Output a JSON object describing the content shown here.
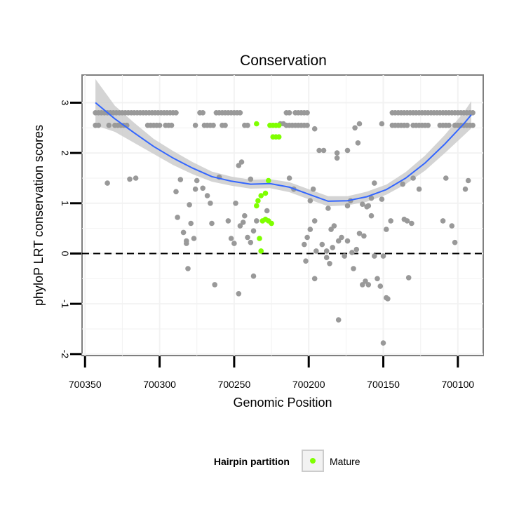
{
  "chart_data": {
    "type": "scatter",
    "title": "Conservation",
    "xlabel": "Genomic Position",
    "ylabel": "phyloP LRT conservation scores",
    "x_reversed": true,
    "xlim": [
      700352,
      700083
    ],
    "ylim": [
      -2.03,
      3.55
    ],
    "x_ticks": [
      700350,
      700300,
      700250,
      700200,
      700150,
      700100
    ],
    "y_ticks": [
      -2,
      -1,
      0,
      1,
      2,
      3
    ],
    "grid": true,
    "reference_line": {
      "y": 0,
      "style": "dashed"
    },
    "legend": {
      "title": "Hairpin partition",
      "placement": "bottom",
      "entries": [
        {
          "label": "Mature",
          "color": "#7fff00"
        }
      ]
    },
    "colors": {
      "other": "#999999",
      "mature": "#7fff00",
      "smooth": "#3366ff",
      "band": "#cccccc"
    },
    "series": [
      {
        "name": "",
        "points": [
          [
            700343,
            2.8
          ],
          [
            700341,
            2.8
          ],
          [
            700339,
            2.8
          ],
          [
            700337,
            2.8
          ],
          [
            700335,
            2.8
          ],
          [
            700333,
            2.8
          ],
          [
            700331,
            2.8
          ],
          [
            700329,
            2.8
          ],
          [
            700327,
            2.8
          ],
          [
            700325,
            2.8
          ],
          [
            700323,
            2.8
          ],
          [
            700321,
            2.8
          ],
          [
            700319,
            2.8
          ],
          [
            700317,
            2.8
          ],
          [
            700315,
            2.8
          ],
          [
            700313,
            2.8
          ],
          [
            700311,
            2.8
          ],
          [
            700309,
            2.8
          ],
          [
            700307,
            2.8
          ],
          [
            700305,
            2.8
          ],
          [
            700303,
            2.8
          ],
          [
            700301,
            2.8
          ],
          [
            700299,
            2.8
          ],
          [
            700297,
            2.8
          ],
          [
            700295,
            2.8
          ],
          [
            700293,
            2.8
          ],
          [
            700291,
            2.8
          ],
          [
            700289,
            2.8
          ],
          [
            700343,
            2.55
          ],
          [
            700341,
            2.55
          ],
          [
            700334,
            2.55
          ],
          [
            700330,
            2.55
          ],
          [
            700328,
            2.55
          ],
          [
            700326,
            2.55
          ],
          [
            700324,
            2.55
          ],
          [
            700322,
            2.55
          ],
          [
            700308,
            2.55
          ],
          [
            700306,
            2.55
          ],
          [
            700304,
            2.55
          ],
          [
            700302,
            2.55
          ],
          [
            700300,
            2.55
          ],
          [
            700296,
            2.55
          ],
          [
            700294,
            2.55
          ],
          [
            700292,
            2.55
          ],
          [
            700273,
            2.8
          ],
          [
            700271,
            2.8
          ],
          [
            700262,
            2.8
          ],
          [
            700260,
            2.8
          ],
          [
            700258,
            2.8
          ],
          [
            700256,
            2.8
          ],
          [
            700254,
            2.8
          ],
          [
            700252,
            2.8
          ],
          [
            700250,
            2.8
          ],
          [
            700248,
            2.8
          ],
          [
            700246,
            2.8
          ],
          [
            700276,
            2.55
          ],
          [
            700270,
            2.55
          ],
          [
            700268,
            2.55
          ],
          [
            700266,
            2.55
          ],
          [
            700264,
            2.55
          ],
          [
            700258,
            2.55
          ],
          [
            700256,
            2.55
          ],
          [
            700243,
            2.55
          ],
          [
            700241,
            2.55
          ],
          [
            700215,
            2.8
          ],
          [
            700213,
            2.8
          ],
          [
            700209,
            2.8
          ],
          [
            700207,
            2.8
          ],
          [
            700205,
            2.8
          ],
          [
            700203,
            2.8
          ],
          [
            700201,
            2.8
          ],
          [
            700219,
            2.58
          ],
          [
            700217,
            2.58
          ],
          [
            700215,
            2.55
          ],
          [
            700213,
            2.55
          ],
          [
            700211,
            2.55
          ],
          [
            700209,
            2.55
          ],
          [
            700207,
            2.55
          ],
          [
            700205,
            2.55
          ],
          [
            700203,
            2.55
          ],
          [
            700201,
            2.55
          ],
          [
            700196,
            2.48
          ],
          [
            700144,
            2.8
          ],
          [
            700142,
            2.8
          ],
          [
            700140,
            2.8
          ],
          [
            700138,
            2.8
          ],
          [
            700136,
            2.8
          ],
          [
            700134,
            2.8
          ],
          [
            700132,
            2.8
          ],
          [
            700130,
            2.8
          ],
          [
            700128,
            2.8
          ],
          [
            700126,
            2.8
          ],
          [
            700124,
            2.8
          ],
          [
            700122,
            2.8
          ],
          [
            700120,
            2.8
          ],
          [
            700118,
            2.8
          ],
          [
            700116,
            2.8
          ],
          [
            700114,
            2.8
          ],
          [
            700112,
            2.8
          ],
          [
            700110,
            2.8
          ],
          [
            700108,
            2.8
          ],
          [
            700106,
            2.8
          ],
          [
            700104,
            2.8
          ],
          [
            700102,
            2.8
          ],
          [
            700100,
            2.8
          ],
          [
            700098,
            2.8
          ],
          [
            700096,
            2.8
          ],
          [
            700094,
            2.8
          ],
          [
            700092,
            2.8
          ],
          [
            700090,
            2.8
          ],
          [
            700151,
            2.58
          ],
          [
            700144,
            2.55
          ],
          [
            700142,
            2.55
          ],
          [
            700140,
            2.55
          ],
          [
            700138,
            2.55
          ],
          [
            700136,
            2.55
          ],
          [
            700134,
            2.55
          ],
          [
            700130,
            2.55
          ],
          [
            700128,
            2.55
          ],
          [
            700126,
            2.55
          ],
          [
            700124,
            2.55
          ],
          [
            700122,
            2.55
          ],
          [
            700120,
            2.55
          ],
          [
            700112,
            2.55
          ],
          [
            700110,
            2.55
          ],
          [
            700108,
            2.55
          ],
          [
            700106,
            2.55
          ],
          [
            700102,
            2.55
          ],
          [
            700100,
            2.55
          ],
          [
            700098,
            2.55
          ],
          [
            700096,
            2.55
          ],
          [
            700094,
            2.55
          ],
          [
            700092,
            2.55
          ],
          [
            700090,
            2.55
          ],
          [
            700169,
            2.5
          ],
          [
            700166,
            2.58
          ],
          [
            700167,
            2.2
          ],
          [
            700174,
            2.05
          ],
          [
            700181,
            2.0
          ],
          [
            700181,
            1.9
          ],
          [
            700190,
            2.05
          ],
          [
            700193,
            2.05
          ],
          [
            700245,
            1.82
          ],
          [
            700247,
            1.75
          ],
          [
            700260,
            1.52
          ],
          [
            700239,
            1.48
          ],
          [
            700335,
            1.4
          ],
          [
            700316,
            1.5
          ],
          [
            700320,
            1.48
          ],
          [
            700130,
            1.5
          ],
          [
            700108,
            1.5
          ],
          [
            700137,
            1.38
          ],
          [
            700126,
            1.28
          ],
          [
            700093,
            1.45
          ],
          [
            700095,
            1.28
          ],
          [
            700197,
            1.28
          ],
          [
            700210,
            1.28
          ],
          [
            700213,
            1.5
          ],
          [
            700199,
            1.05
          ],
          [
            700286,
            1.47
          ],
          [
            700275,
            1.45
          ],
          [
            700271,
            1.3
          ],
          [
            700289,
            1.23
          ],
          [
            700276,
            1.28
          ],
          [
            700268,
            1.15
          ],
          [
            700266,
            1.0
          ],
          [
            700280,
            0.97
          ],
          [
            700288,
            0.72
          ],
          [
            700284,
            0.42
          ],
          [
            700282,
            0.25
          ],
          [
            700279,
            0.6
          ],
          [
            700282,
            0.2
          ],
          [
            700281,
            -0.3
          ],
          [
            700277,
            0.3
          ],
          [
            700265,
            0.6
          ],
          [
            700254,
            0.65
          ],
          [
            700252,
            0.3
          ],
          [
            700250,
            0.2
          ],
          [
            700249,
            1.0
          ],
          [
            700246,
            0.55
          ],
          [
            700244,
            0.62
          ],
          [
            700241,
            0.32
          ],
          [
            700239,
            0.22
          ],
          [
            700237,
            0.45
          ],
          [
            700243,
            0.75
          ],
          [
            700235,
            0.65
          ],
          [
            700237,
            -0.45
          ],
          [
            700247,
            -0.8
          ],
          [
            700263,
            -0.62
          ],
          [
            700228,
            0.85
          ],
          [
            700188,
            0.05
          ],
          [
            700185,
            0.48
          ],
          [
            700183,
            0.55
          ],
          [
            700180,
            0.25
          ],
          [
            700178,
            0.32
          ],
          [
            700174,
            0.95
          ],
          [
            700172,
            1.05
          ],
          [
            700164,
            0.98
          ],
          [
            700161,
            0.93
          ],
          [
            700158,
            1.1
          ],
          [
            700156,
            1.4
          ],
          [
            700151,
            1.08
          ],
          [
            700148,
            0.48
          ],
          [
            700145,
            0.65
          ],
          [
            700136,
            0.68
          ],
          [
            700134,
            0.65
          ],
          [
            700131,
            0.6
          ],
          [
            700110,
            0.65
          ],
          [
            700104,
            0.55
          ],
          [
            700102,
            0.22
          ],
          [
            700187,
            0.9
          ],
          [
            700203,
            0.18
          ],
          [
            700201,
            0.32
          ],
          [
            700199,
            0.48
          ],
          [
            700196,
            0.65
          ],
          [
            700191,
            0.18
          ],
          [
            700188,
            -0.08
          ],
          [
            700186,
            -0.2
          ],
          [
            700184,
            0.12
          ],
          [
            700176,
            -0.05
          ],
          [
            700168,
            0.08
          ],
          [
            700166,
            0.4
          ],
          [
            700163,
            0.35
          ],
          [
            700160,
            0.95
          ],
          [
            700158,
            0.75
          ],
          [
            700156,
            -0.05
          ],
          [
            700154,
            -0.5
          ],
          [
            700152,
            -0.65
          ],
          [
            700150,
            -0.05
          ],
          [
            700148,
            -0.88
          ],
          [
            700147,
            -0.9
          ],
          [
            700162,
            -0.55
          ],
          [
            700160,
            -0.62
          ],
          [
            700164,
            -0.62
          ],
          [
            700170,
            -0.3
          ],
          [
            700196,
            -0.5
          ],
          [
            700202,
            -0.15
          ],
          [
            700180,
            -1.32
          ],
          [
            700150,
            -1.78
          ],
          [
            700133,
            -0.48
          ],
          [
            700174,
            0.25
          ],
          [
            700171,
            0.02
          ],
          [
            700195,
            0.05
          ]
        ]
      },
      {
        "name": "Mature",
        "points": [
          [
            700235,
            2.58
          ],
          [
            700226,
            2.55
          ],
          [
            700224,
            2.55
          ],
          [
            700222,
            2.55
          ],
          [
            700220,
            2.55
          ],
          [
            700224,
            2.32
          ],
          [
            700222,
            2.32
          ],
          [
            700220,
            2.32
          ],
          [
            700227,
            1.45
          ],
          [
            700229,
            1.2
          ],
          [
            700232,
            1.15
          ],
          [
            700234,
            1.05
          ],
          [
            700235,
            0.95
          ],
          [
            700229,
            0.68
          ],
          [
            700231,
            0.65
          ],
          [
            700227,
            0.65
          ],
          [
            700225,
            0.6
          ],
          [
            700233,
            0.3
          ],
          [
            700232,
            0.05
          ]
        ]
      }
    ],
    "smooth": {
      "x": [
        700343,
        700330,
        700317,
        700304,
        700291,
        700278,
        700265,
        700252,
        700239,
        700226,
        700213,
        700200,
        700187,
        700174,
        700161,
        700148,
        700135,
        700122,
        700109,
        700096,
        700091
      ],
      "y": [
        3.0,
        2.68,
        2.4,
        2.13,
        1.9,
        1.7,
        1.53,
        1.44,
        1.38,
        1.39,
        1.32,
        1.18,
        1.04,
        1.05,
        1.13,
        1.27,
        1.5,
        1.8,
        2.17,
        2.58,
        2.76
      ],
      "lower": [
        2.55,
        2.42,
        2.2,
        1.98,
        1.76,
        1.58,
        1.43,
        1.35,
        1.29,
        1.3,
        1.22,
        1.08,
        0.94,
        0.96,
        1.03,
        1.17,
        1.38,
        1.65,
        1.99,
        2.35,
        2.49
      ],
      "upper": [
        3.47,
        2.94,
        2.6,
        2.28,
        2.04,
        1.82,
        1.63,
        1.53,
        1.47,
        1.48,
        1.42,
        1.28,
        1.14,
        1.14,
        1.23,
        1.37,
        1.62,
        1.95,
        2.35,
        2.81,
        3.03
      ]
    }
  }
}
